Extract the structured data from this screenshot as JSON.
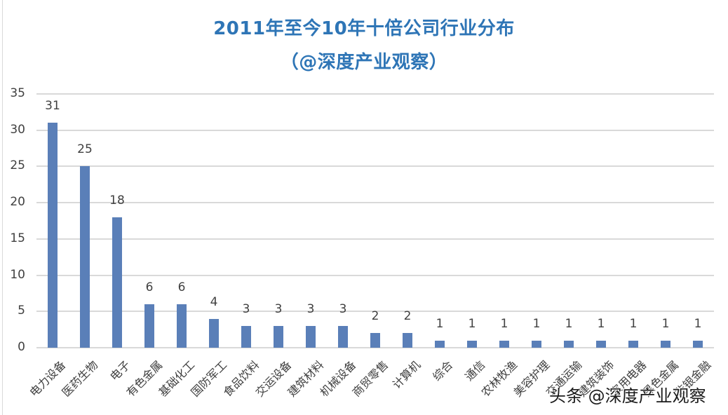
{
  "chart_data": {
    "type": "bar",
    "title": "2011年至今10年十倍公司行业分布",
    "subtitle": "（@深度产业观察）",
    "xlabel": "",
    "ylabel": "",
    "ylim": [
      0,
      35
    ],
    "yticks": [
      0,
      5,
      10,
      15,
      20,
      25,
      30,
      35
    ],
    "grid": true,
    "legend": null,
    "bar_color": "#5a7fb8",
    "categories": [
      "电力设备",
      "医药生物",
      "电子",
      "有色金属",
      "基础化工",
      "国防军工",
      "食品饮料",
      "交运设备",
      "建筑材料",
      "机械设备",
      "商贸零售",
      "计算机",
      "综合",
      "通信",
      "农林牧渔",
      "美容护理",
      "交通运输",
      "建筑装饰",
      "家用电器",
      "黑色金属",
      "非银金融"
    ],
    "values": [
      31,
      25,
      18,
      6,
      6,
      4,
      3,
      3,
      3,
      3,
      2,
      2,
      1,
      1,
      1,
      1,
      1,
      1,
      1,
      1,
      1
    ],
    "data_labels": true
  },
  "watermark": "头条 @深度产业观察"
}
